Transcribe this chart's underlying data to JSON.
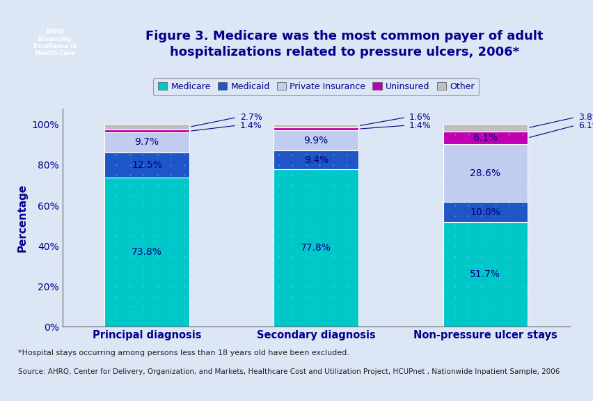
{
  "categories": [
    "Principal diagnosis",
    "Secondary diagnosis",
    "Non-pressure ulcer stays"
  ],
  "series": {
    "Medicare": [
      73.8,
      77.8,
      51.7
    ],
    "Medicaid": [
      12.5,
      9.4,
      10.0
    ],
    "Private Insurance": [
      9.7,
      9.9,
      28.6
    ],
    "Uninsured": [
      1.4,
      1.4,
      6.1
    ],
    "Other": [
      2.7,
      1.6,
      3.8
    ]
  },
  "colors": {
    "Medicare": "#00c8c8",
    "Medicaid": "#1e56c8",
    "Private Insurance": "#c0ccf0",
    "Uninsured": "#c000b0",
    "Other": "#c0c0c0"
  },
  "ylabel": "Percentage",
  "ylim": [
    0,
    108
  ],
  "yticks": [
    0,
    20,
    40,
    60,
    80,
    100
  ],
  "ytick_labels": [
    "0%",
    "20%",
    "40%",
    "60%",
    "80%",
    "100%"
  ],
  "title": "Figure 3. Medicare was the most common payer of adult\nhospitalizations related to pressure ulcers, 2006*",
  "footnote1": "*Hospital stays occurring among persons less than 18 years old have been excluded.",
  "footnote2": "Source: AHRQ, Center for Delivery, Organization, and Markets, Healthcare Cost and Utilization Project, HCUPnet , Nationwide Inpatient Sample, 2006",
  "text_color": "#00008b",
  "bar_text_color": "#000080",
  "annotation_color": "#000080",
  "background_color": "#dce6f5",
  "bar_width": 0.5,
  "label_fontsize": 10,
  "annotation_fontsize": 9,
  "title_fontsize": 13,
  "legend_fontsize": 9
}
